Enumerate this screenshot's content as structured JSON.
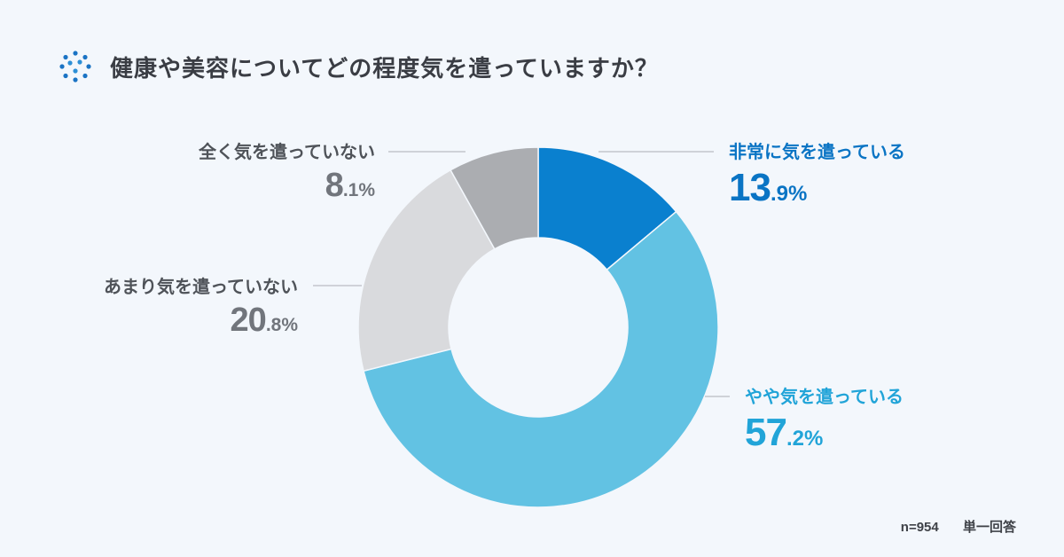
{
  "title": "健康や美容についてどの程度気を遣っていますか？",
  "footer": {
    "n": "n=954",
    "type": "単一回答"
  },
  "icon": "dotted-circle-icon",
  "chart_data": {
    "type": "pie",
    "donut": true,
    "start": "top",
    "direction": "clockwise",
    "slices": [
      {
        "label": "非常に気を遣っている",
        "value": 13.9,
        "value_int": "13",
        "value_dec": ".9%",
        "color": "#0a80cf"
      },
      {
        "label": "やや気を遣っている",
        "value": 57.2,
        "value_int": "57",
        "value_dec": ".2%",
        "color": "#62c2e3"
      },
      {
        "label": "あまり気を遣っていない",
        "value": 20.8,
        "value_int": "20",
        "value_dec": ".8%",
        "color": "#d9dadd"
      },
      {
        "label": "全く気を遣っていない",
        "value": 8.1,
        "value_int": "8",
        "value_dec": ".1%",
        "color": "#abadb1"
      }
    ]
  }
}
